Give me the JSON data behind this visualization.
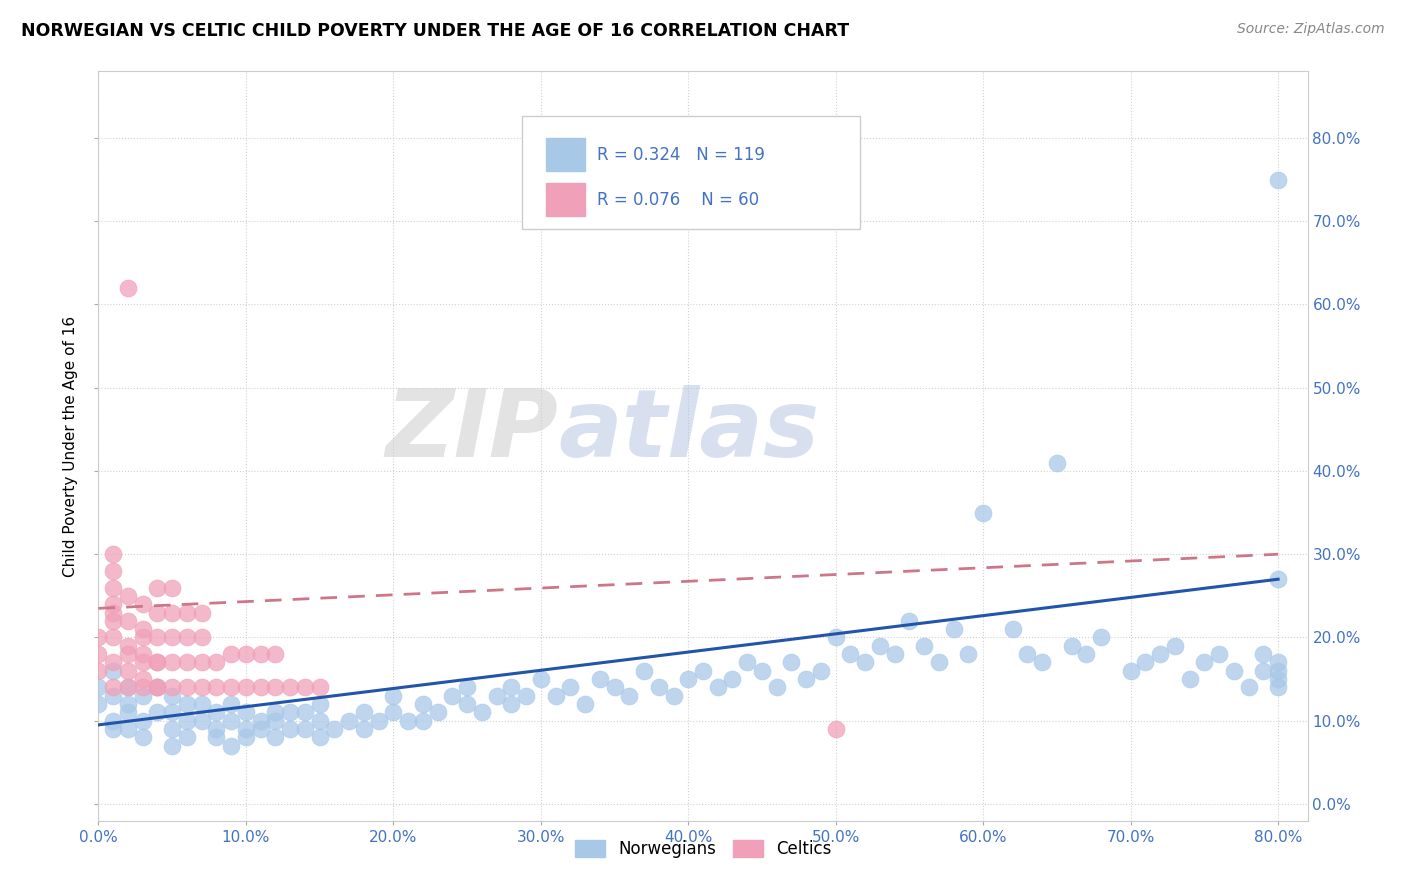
{
  "title": "NORWEGIAN VS CELTIC CHILD POVERTY UNDER THE AGE OF 16 CORRELATION CHART",
  "source": "Source: ZipAtlas.com",
  "ylabel": "Child Poverty Under the Age of 16",
  "xlim": [
    0.0,
    0.82
  ],
  "ylim": [
    -0.02,
    0.88
  ],
  "xtick_vals": [
    0.0,
    0.1,
    0.2,
    0.3,
    0.4,
    0.5,
    0.6,
    0.7,
    0.8
  ],
  "ytick_vals": [
    0.0,
    0.1,
    0.2,
    0.3,
    0.4,
    0.5,
    0.6,
    0.7,
    0.8
  ],
  "xtick_labels": [
    "0.0%",
    "10.0%",
    "20.0%",
    "30.0%",
    "40.0%",
    "50.0%",
    "60.0%",
    "70.0%",
    "80.0%"
  ],
  "ytick_labels": [
    "0.0%",
    "10.0%",
    "20.0%",
    "30.0%",
    "40.0%",
    "50.0%",
    "60.0%",
    "70.0%",
    "80.0%"
  ],
  "norwegian_color": "#a8c8e8",
  "celtic_color": "#f0a0b8",
  "trendline_norwegian_color": "#2255aa",
  "trendline_celtic_color": "#cc7788",
  "R_norwegian": 0.324,
  "N_norwegian": 119,
  "R_celtic": 0.076,
  "N_celtic": 60,
  "watermark_zip": "ZIP",
  "watermark_atlas": "atlas",
  "background_color": "#ffffff",
  "nor_trendline_x0": 0.0,
  "nor_trendline_y0": 0.095,
  "nor_trendline_x1": 0.8,
  "nor_trendline_y1": 0.27,
  "cel_trendline_x0": 0.0,
  "cel_trendline_y0": 0.235,
  "cel_trendline_x1": 0.8,
  "cel_trendline_y1": 0.3,
  "nor_x": [
    0.0,
    0.0,
    0.01,
    0.01,
    0.01,
    0.01,
    0.02,
    0.02,
    0.02,
    0.02,
    0.03,
    0.03,
    0.03,
    0.04,
    0.04,
    0.05,
    0.05,
    0.05,
    0.05,
    0.06,
    0.06,
    0.06,
    0.07,
    0.07,
    0.08,
    0.08,
    0.08,
    0.09,
    0.09,
    0.09,
    0.1,
    0.1,
    0.1,
    0.11,
    0.11,
    0.12,
    0.12,
    0.12,
    0.13,
    0.13,
    0.14,
    0.14,
    0.15,
    0.15,
    0.15,
    0.16,
    0.17,
    0.18,
    0.18,
    0.19,
    0.2,
    0.2,
    0.21,
    0.22,
    0.22,
    0.23,
    0.24,
    0.25,
    0.25,
    0.26,
    0.27,
    0.28,
    0.28,
    0.29,
    0.3,
    0.31,
    0.32,
    0.33,
    0.34,
    0.35,
    0.36,
    0.37,
    0.38,
    0.39,
    0.4,
    0.41,
    0.42,
    0.43,
    0.44,
    0.45,
    0.46,
    0.47,
    0.48,
    0.49,
    0.5,
    0.51,
    0.52,
    0.53,
    0.54,
    0.55,
    0.56,
    0.57,
    0.58,
    0.59,
    0.6,
    0.62,
    0.63,
    0.64,
    0.65,
    0.66,
    0.67,
    0.68,
    0.7,
    0.71,
    0.72,
    0.73,
    0.74,
    0.75,
    0.76,
    0.77,
    0.78,
    0.79,
    0.79,
    0.8,
    0.8,
    0.8,
    0.8,
    0.8,
    0.8
  ],
  "nor_y": [
    0.12,
    0.14,
    0.1,
    0.13,
    0.16,
    0.09,
    0.11,
    0.14,
    0.09,
    0.12,
    0.1,
    0.13,
    0.08,
    0.11,
    0.14,
    0.09,
    0.11,
    0.13,
    0.07,
    0.1,
    0.12,
    0.08,
    0.1,
    0.12,
    0.09,
    0.11,
    0.08,
    0.1,
    0.12,
    0.07,
    0.09,
    0.11,
    0.08,
    0.1,
    0.09,
    0.11,
    0.08,
    0.1,
    0.09,
    0.11,
    0.09,
    0.11,
    0.1,
    0.08,
    0.12,
    0.09,
    0.1,
    0.11,
    0.09,
    0.1,
    0.11,
    0.13,
    0.1,
    0.12,
    0.1,
    0.11,
    0.13,
    0.12,
    0.14,
    0.11,
    0.13,
    0.14,
    0.12,
    0.13,
    0.15,
    0.13,
    0.14,
    0.12,
    0.15,
    0.14,
    0.13,
    0.16,
    0.14,
    0.13,
    0.15,
    0.16,
    0.14,
    0.15,
    0.17,
    0.16,
    0.14,
    0.17,
    0.15,
    0.16,
    0.2,
    0.18,
    0.17,
    0.19,
    0.18,
    0.22,
    0.19,
    0.17,
    0.21,
    0.18,
    0.35,
    0.21,
    0.18,
    0.17,
    0.41,
    0.19,
    0.18,
    0.2,
    0.16,
    0.17,
    0.18,
    0.19,
    0.15,
    0.17,
    0.18,
    0.16,
    0.14,
    0.16,
    0.18,
    0.15,
    0.16,
    0.14,
    0.17,
    0.75,
    0.27
  ],
  "cel_x": [
    0.0,
    0.0,
    0.0,
    0.01,
    0.01,
    0.01,
    0.01,
    0.01,
    0.01,
    0.01,
    0.01,
    0.01,
    0.02,
    0.02,
    0.02,
    0.02,
    0.02,
    0.02,
    0.02,
    0.03,
    0.03,
    0.03,
    0.03,
    0.03,
    0.03,
    0.03,
    0.04,
    0.04,
    0.04,
    0.04,
    0.04,
    0.04,
    0.04,
    0.05,
    0.05,
    0.05,
    0.05,
    0.05,
    0.06,
    0.06,
    0.06,
    0.06,
    0.07,
    0.07,
    0.07,
    0.07,
    0.08,
    0.08,
    0.09,
    0.09,
    0.1,
    0.1,
    0.11,
    0.11,
    0.12,
    0.12,
    0.13,
    0.14,
    0.15,
    0.5
  ],
  "cel_y": [
    0.16,
    0.18,
    0.2,
    0.22,
    0.24,
    0.26,
    0.28,
    0.3,
    0.14,
    0.17,
    0.2,
    0.23,
    0.16,
    0.19,
    0.22,
    0.25,
    0.14,
    0.18,
    0.62,
    0.15,
    0.18,
    0.21,
    0.24,
    0.14,
    0.17,
    0.2,
    0.14,
    0.17,
    0.2,
    0.23,
    0.26,
    0.14,
    0.17,
    0.14,
    0.17,
    0.2,
    0.23,
    0.26,
    0.14,
    0.17,
    0.2,
    0.23,
    0.14,
    0.17,
    0.2,
    0.23,
    0.14,
    0.17,
    0.14,
    0.18,
    0.14,
    0.18,
    0.14,
    0.18,
    0.14,
    0.18,
    0.14,
    0.14,
    0.14,
    0.09
  ]
}
